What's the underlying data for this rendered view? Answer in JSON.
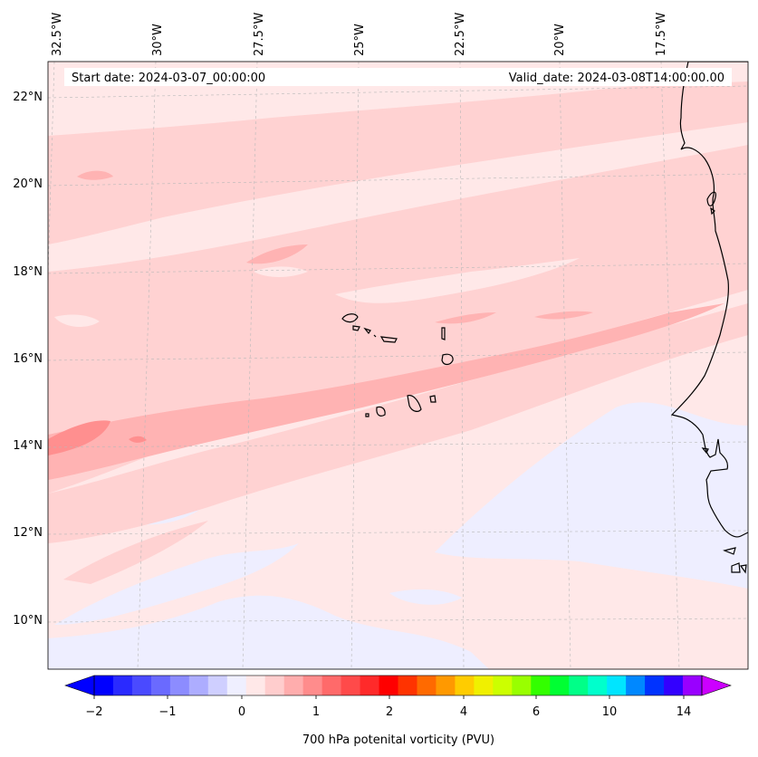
{
  "map": {
    "start_label": "Start date: 2024-03-07_00:00:00",
    "valid_label": "Valid_date: 2024-03-08T14:00:00.00",
    "lon_labels": [
      "32.5°W",
      "30°W",
      "27.5°W",
      "25°W",
      "22.5°W",
      "20°W",
      "17.5°W"
    ],
    "lat_labels": [
      "22°N",
      "20°N",
      "18°N",
      "16°N",
      "14°N",
      "12°N",
      "10°N"
    ],
    "islands": "Cape Verde islands",
    "coastline": "West African coast"
  },
  "colorbar": {
    "title": "700 hPa potenital vorticity (PVU)",
    "tick_labels": [
      "−2",
      "−1",
      "0",
      "1",
      "2",
      "4",
      "6",
      "10",
      "14"
    ],
    "colors": [
      "#0000ff",
      "#2a2aff",
      "#4a4aff",
      "#6a6aff",
      "#8c8cff",
      "#adadff",
      "#cfcfff",
      "#efefff",
      "#ffe8e8",
      "#ffcdcd",
      "#ffadad",
      "#ff8c8c",
      "#ff6a6a",
      "#ff4a4a",
      "#ff2a2a",
      "#ff0000",
      "#ff3300",
      "#ff6a00",
      "#ff9900",
      "#ffcc00",
      "#f0f000",
      "#ccff00",
      "#99ff00",
      "#33ff00",
      "#00ff33",
      "#00ff88",
      "#00ffcc",
      "#00e5ff",
      "#0088ff",
      "#0033ff",
      "#3300ff",
      "#9900ff"
    ],
    "under_color": "#0000ff",
    "over_color": "#cc00ff"
  },
  "palette": {
    "background": "#ffe8e8",
    "level1": "#ffd2d2",
    "level2": "#ffb3b3",
    "level3": "#ff8f8f",
    "negative": "#eeeeff",
    "coast": "#000000",
    "grid": "#b0b0b0"
  }
}
